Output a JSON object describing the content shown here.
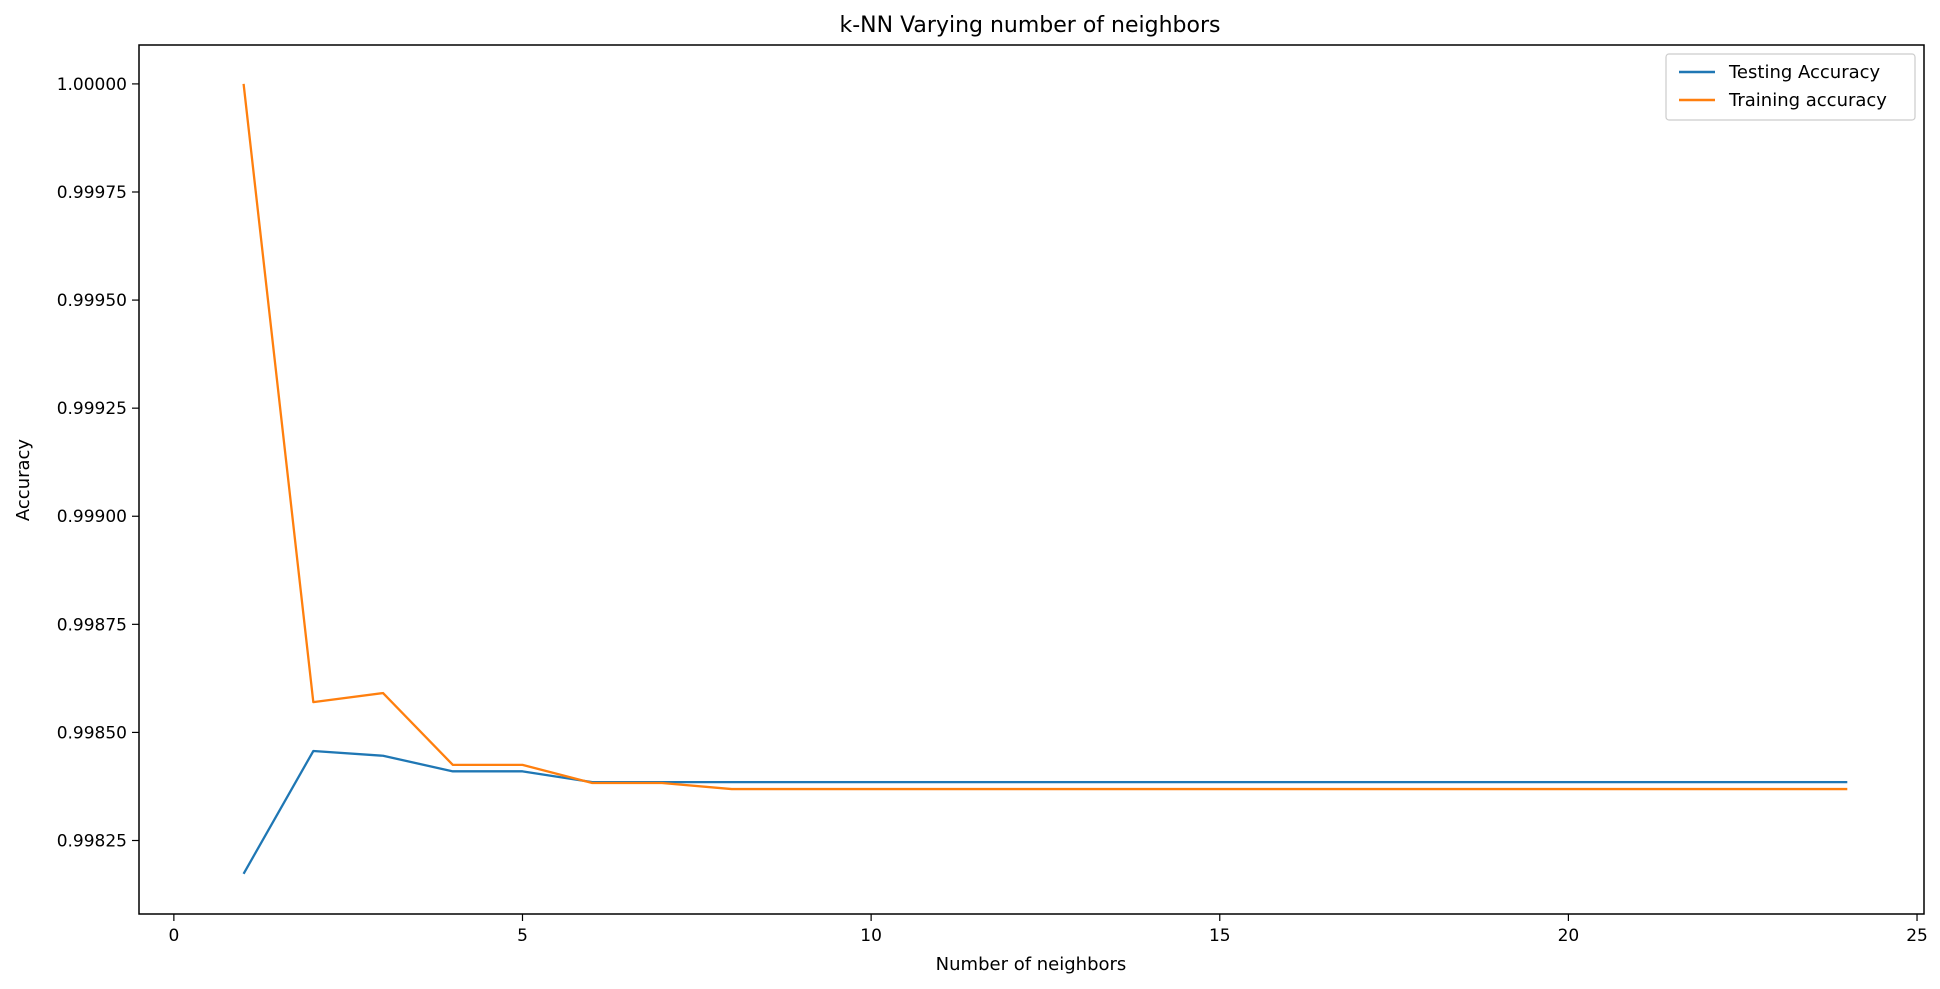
{
  "chart_data": {
    "type": "line",
    "title": "k-NN Varying number of neighbors",
    "xlabel": "Number of neighbors",
    "ylabel": "Accuracy",
    "xlim": [
      -0.5,
      25.1
    ],
    "ylim": [
      0.99808,
      1.00009
    ],
    "xticks": [
      0,
      5,
      10,
      15,
      20,
      25
    ],
    "xtick_labels": [
      "0",
      "5",
      "10",
      "15",
      "20",
      "25"
    ],
    "yticks": [
      0.99825,
      0.9985,
      0.99875,
      0.999,
      0.99925,
      0.9995,
      0.99975,
      1.0
    ],
    "ytick_labels": [
      "0.99825",
      "0.99850",
      "0.99875",
      "0.99900",
      "0.99925",
      "0.99950",
      "0.99975",
      "1.00000"
    ],
    "grid": false,
    "legend_position": "top-right",
    "x": [
      1,
      2,
      3,
      4,
      5,
      6,
      7,
      8,
      9,
      10,
      11,
      12,
      13,
      14,
      15,
      16,
      17,
      18,
      19,
      20,
      21,
      22,
      23,
      24
    ],
    "series": [
      {
        "name": "Testing Accuracy",
        "color": "#1f77b4",
        "values": [
          0.998173,
          0.998457,
          0.998446,
          0.99841,
          0.99841,
          0.998385,
          0.998385,
          0.998385,
          0.998385,
          0.998385,
          0.998385,
          0.998385,
          0.998385,
          0.998385,
          0.998385,
          0.998385,
          0.998385,
          0.998385,
          0.998385,
          0.998385,
          0.998385,
          0.998385,
          0.998385,
          0.998385
        ]
      },
      {
        "name": "Training accuracy",
        "color": "#ff7f0e",
        "values": [
          1.0,
          0.99857,
          0.998591,
          0.998425,
          0.998425,
          0.998383,
          0.998383,
          0.998369,
          0.998369,
          0.998369,
          0.998369,
          0.998369,
          0.998369,
          0.998369,
          0.998369,
          0.998369,
          0.998369,
          0.998369,
          0.998369,
          0.998369,
          0.998369,
          0.998369,
          0.998369,
          0.998369
        ]
      }
    ]
  }
}
